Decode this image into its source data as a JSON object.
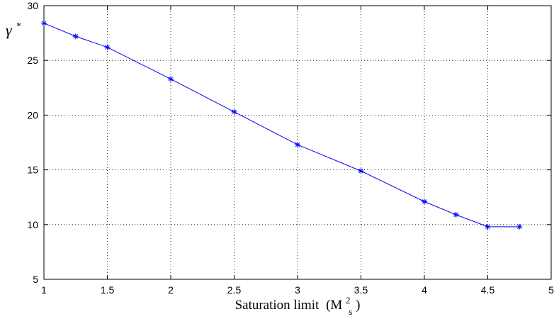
{
  "chart_data": {
    "type": "line",
    "title": "",
    "xlabel": "Saturation limit",
    "xlabel_math": {
      "prefix": "(M",
      "superscript": "2",
      "subscript": "s",
      "suffix": ")"
    },
    "ylabel": "γ",
    "ylabel_superscript": "*",
    "xlim": [
      1,
      5
    ],
    "ylim": [
      5,
      30
    ],
    "xticks": [
      1,
      1.5,
      2,
      2.5,
      3,
      3.5,
      4,
      4.5,
      5
    ],
    "yticks": [
      5,
      10,
      15,
      20,
      25,
      30
    ],
    "grid": true,
    "series": [
      {
        "color": "#0000ff",
        "marker": "asterisk",
        "x": [
          1,
          1.25,
          1.5,
          2,
          2.5,
          3,
          3.5,
          4,
          4.25,
          4.5,
          4.75
        ],
        "y": [
          28.4,
          27.2,
          26.2,
          23.3,
          20.3,
          17.3,
          14.9,
          12.1,
          10.9,
          9.8,
          9.8
        ]
      }
    ]
  }
}
